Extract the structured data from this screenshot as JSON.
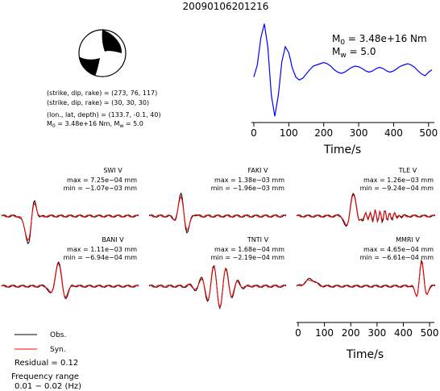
{
  "title": "20090106201216",
  "source_info": {
    "line1": "(strike, dip, rake) = (273, 76, 117)",
    "line2": "(strike, dip, rake) = (30, 30, 30)",
    "line3": "(lon., lat, depth) = (133.7, -0.1, 40)",
    "line4": "M₀ = 3.48e+16 Nm, Mᵥ = 5.0",
    "line4_m0_prefix": "M",
    "line4_m0_sub": "0",
    "line4_m0_val": " = 3.48e+16 Nm, M",
    "line4_mw_sub": "w",
    "line4_mw_val": " = 5.0"
  },
  "stf_label": {
    "m0_prefix": "M",
    "m0_sub": "0",
    "m0_value": " = 3.48e+16 Nm",
    "mw_prefix": "M",
    "mw_sub": "w",
    "mw_value": " = 5.0"
  },
  "legend": {
    "obs": "Obs.",
    "syn": "Syn.",
    "residual": "Residual = 0.12",
    "freq_title": "Frequency range",
    "freq_value": "0.01 − 0.02 (Hz)"
  },
  "colors": {
    "obs": "#000000",
    "syn": "#ff0000",
    "stf": "#0000ff",
    "beach_dark": "#000000",
    "beach_light": "#ffffff"
  },
  "chart_data": [
    {
      "type": "line",
      "name": "source-time-function",
      "xlabel": "Time/s",
      "ylabel": "",
      "xlim": [
        0,
        512
      ],
      "xticks": [
        "0",
        "100",
        "200",
        "300",
        "400",
        "500"
      ],
      "grid": false,
      "series": [
        {
          "name": "",
          "x": [
            0,
            10,
            20,
            30,
            40,
            50,
            60,
            70,
            80,
            90,
            100,
            110,
            120,
            130,
            140,
            150,
            160,
            170,
            180,
            190,
            200,
            210,
            220,
            230,
            240,
            250,
            260,
            270,
            280,
            290,
            300,
            310,
            320,
            330,
            340,
            350,
            360,
            370,
            380,
            390,
            400,
            410,
            420,
            430,
            440,
            450,
            460,
            470,
            480,
            490,
            500,
            510
          ],
          "y": [
            0.1,
            0.3,
            0.75,
            0.98,
            0.6,
            -0.2,
            -0.55,
            -0.2,
            0.35,
            0.6,
            0.5,
            0.25,
            0.1,
            0.05,
            0.08,
            0.15,
            0.22,
            0.28,
            0.3,
            0.32,
            0.34,
            0.32,
            0.28,
            0.22,
            0.18,
            0.16,
            0.18,
            0.22,
            0.26,
            0.28,
            0.27,
            0.24,
            0.2,
            0.18,
            0.2,
            0.24,
            0.26,
            0.24,
            0.2,
            0.18,
            0.2,
            0.24,
            0.28,
            0.3,
            0.32,
            0.3,
            0.26,
            0.2,
            0.15,
            0.12,
            0.18,
            0.22
          ]
        }
      ]
    },
    {
      "type": "line",
      "name": "waveforms",
      "xlabel": "Time/s",
      "xlim": [
        0,
        512
      ],
      "xticks": [
        "0",
        "100",
        "200",
        "300",
        "400",
        "500"
      ],
      "stations": [
        {
          "name": "SWI V",
          "max": "max = 7.25e−04 mm",
          "min": "min = −1.07e−03 mm"
        },
        {
          "name": "FAKI V",
          "max": "max = 1.38e−03 mm",
          "min": "min = −1.96e−03 mm"
        },
        {
          "name": "TLE V",
          "max": "max = 1.26e−03 mm",
          "min": "min = −9.24e−04 mm"
        },
        {
          "name": "BANI V",
          "max": "max = 1.11e−03 mm",
          "min": "min = −6.94e−04 mm"
        },
        {
          "name": "TNTI V",
          "max": "max = 1.68e−04 mm",
          "min": "min = −2.19e−04 mm"
        },
        {
          "name": "MMRI V",
          "max": "max = 4.65e−04 mm",
          "min": "min = −6.61e−04 mm"
        }
      ],
      "series": [
        {
          "name": "Obs.",
          "color": "#000000"
        },
        {
          "name": "Syn.",
          "color": "#ff0000"
        }
      ]
    }
  ]
}
